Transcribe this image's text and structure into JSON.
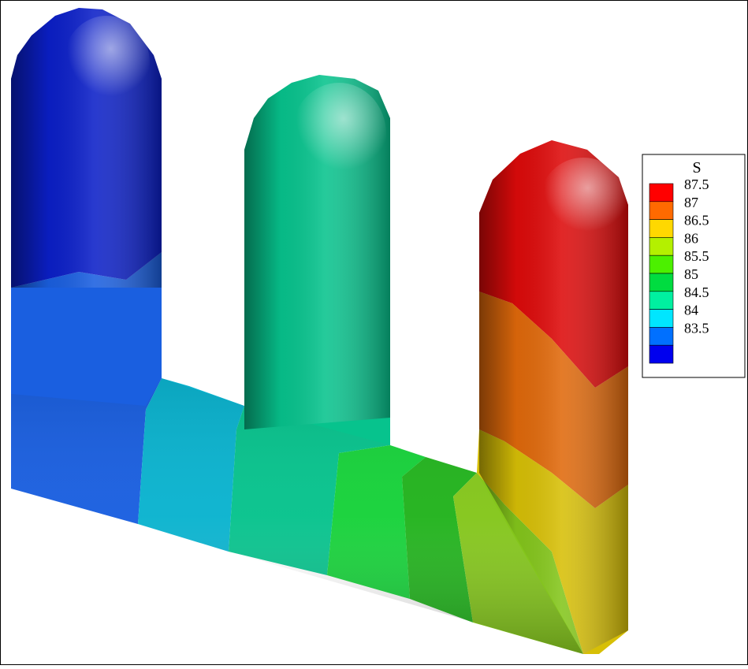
{
  "legend": {
    "title": "S",
    "levels": [
      {
        "label": "87.5",
        "color": "#ff0000"
      },
      {
        "label": "87",
        "color": "#ff6a00"
      },
      {
        "label": "86.5",
        "color": "#ffd800"
      },
      {
        "label": "86",
        "color": "#b4f000"
      },
      {
        "label": "85.5",
        "color": "#4cf000"
      },
      {
        "label": "85",
        "color": "#00dc40"
      },
      {
        "label": "84.5",
        "color": "#00f0a0"
      },
      {
        "label": "84",
        "color": "#00e6ff"
      },
      {
        "label": "83.5",
        "color": "#0070ff"
      },
      {
        "label": "",
        "color": "#0000ee"
      }
    ]
  },
  "colors": {
    "blue_top": "#0b1fc8",
    "blue_mid": "#1a5fe0",
    "cyan": "#0ab3cf",
    "teal": "#07c38d",
    "green": "#17d23a",
    "green_dark": "#22b31d",
    "lime": "#84c61b",
    "yellow": "#d7bf06",
    "orange": "#e0690b",
    "red": "#dd0a0a"
  }
}
